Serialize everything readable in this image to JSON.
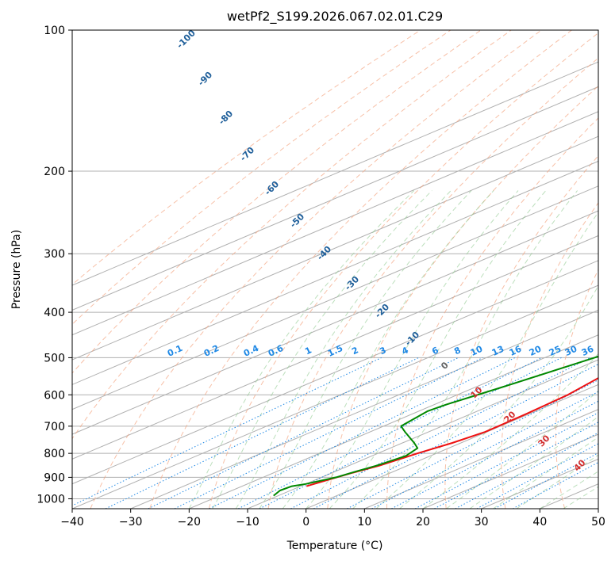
{
  "chart_data": {
    "type": "line",
    "title": "wetPf2_S199.2026.067.02.01.C29",
    "xlabel": "Temperature (°C)",
    "ylabel": "Pressure (hPa)",
    "xlim": [
      -40,
      50
    ],
    "ylim": [
      1050,
      100
    ],
    "x_ticks": [
      -40,
      -30,
      -20,
      -10,
      0,
      10,
      20,
      30,
      40,
      50
    ],
    "y_ticks": [
      100,
      200,
      300,
      400,
      500,
      600,
      700,
      800,
      900,
      1000
    ],
    "grid": true,
    "skew_deg_per_log_pressure": 82,
    "series": [
      {
        "name": "Temperature",
        "color": "#ee1111",
        "points": [
          [
            -9,
            940
          ],
          [
            -6.5,
            880
          ],
          [
            -4.8,
            850
          ],
          [
            -3.2,
            800
          ],
          [
            -1.5,
            760
          ],
          [
            -0.3,
            720
          ],
          [
            -0.5,
            660
          ],
          [
            -1.1,
            600
          ],
          [
            -4.5,
            500
          ],
          [
            -5.7,
            450
          ],
          [
            -5.5,
            400
          ],
          [
            -8.5,
            350
          ],
          [
            -12,
            300
          ],
          [
            -14,
            260
          ],
          [
            -14,
            250
          ],
          [
            -20,
            210
          ],
          [
            -25,
            200
          ],
          [
            -30,
            190
          ],
          [
            -35,
            180
          ],
          [
            -42,
            170
          ],
          [
            -47,
            160
          ],
          [
            -52,
            150
          ],
          [
            -60,
            140
          ],
          [
            -65,
            130
          ],
          [
            -68,
            120
          ],
          [
            -71,
            110
          ],
          [
            -72,
            100
          ]
        ]
      },
      {
        "name": "Dew Point",
        "color": "#008800",
        "points": [
          [
            -10.8,
            985
          ],
          [
            -11.8,
            960
          ],
          [
            -11.5,
            940
          ],
          [
            -10,
            930
          ],
          [
            -7.5,
            900
          ],
          [
            -6.5,
            875
          ],
          [
            -5.3,
            850
          ],
          [
            -4.2,
            810
          ],
          [
            -5.3,
            780
          ],
          [
            -8,
            760
          ],
          [
            -14,
            720
          ],
          [
            -17,
            700
          ],
          [
            -18.5,
            650
          ],
          [
            -18,
            630
          ],
          [
            -15.5,
            580
          ],
          [
            -11.5,
            500
          ],
          [
            -9,
            450
          ],
          [
            -6.5,
            400
          ],
          [
            -11,
            350
          ],
          [
            -16,
            300
          ],
          [
            -17.5,
            270
          ],
          [
            -14.5,
            250
          ],
          [
            -28,
            230
          ],
          [
            -32,
            220
          ],
          [
            -37,
            210
          ],
          [
            -42,
            200
          ],
          [
            -47,
            185
          ],
          [
            -56,
            170
          ],
          [
            -60,
            160
          ],
          [
            -66,
            150
          ],
          [
            -70,
            140
          ],
          [
            -76,
            130
          ],
          [
            -82,
            120
          ],
          [
            -86,
            110
          ],
          [
            -88,
            100
          ]
        ]
      }
    ],
    "dry_adiabat_labels": [
      "-100",
      "-90",
      "-80",
      "-70",
      "-60",
      "-50",
      "-40",
      "-30",
      "-20",
      "-10"
    ],
    "moist_adiabat_labels": [
      "0",
      "10",
      "20",
      "30",
      "40"
    ],
    "mixing_ratio_labels": [
      "0.1",
      "0.2",
      "0.4",
      "0.6",
      "1",
      "1.5",
      "2",
      "3",
      "4",
      "6",
      "8",
      "10",
      "13",
      "16",
      "20",
      "25",
      "30",
      "36"
    ]
  }
}
